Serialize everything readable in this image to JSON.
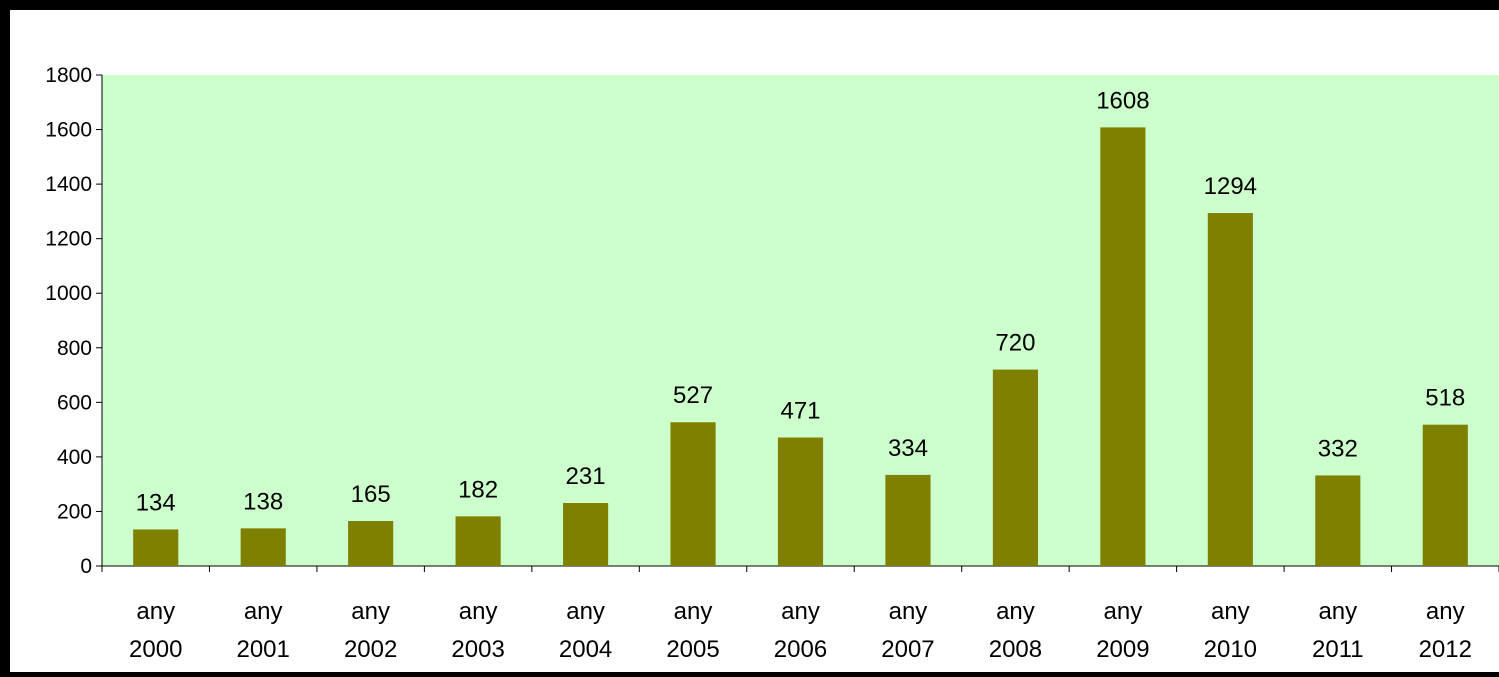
{
  "chart_data": {
    "type": "bar",
    "title": "",
    "xlabel": "",
    "ylabel": "",
    "categories": [
      [
        "any",
        "2000"
      ],
      [
        "any",
        "2001"
      ],
      [
        "any",
        "2002"
      ],
      [
        "any",
        "2003"
      ],
      [
        "any",
        "2004"
      ],
      [
        "any",
        "2005"
      ],
      [
        "any",
        "2006"
      ],
      [
        "any",
        "2007"
      ],
      [
        "any",
        "2008"
      ],
      [
        "any",
        "2009"
      ],
      [
        "any",
        "2010"
      ],
      [
        "any",
        "2011"
      ],
      [
        "any",
        "2012"
      ]
    ],
    "values": [
      134,
      138,
      165,
      182,
      231,
      527,
      471,
      334,
      720,
      1608,
      1294,
      332,
      518
    ],
    "data_labels": [
      "134",
      "138",
      "165",
      "182",
      "231",
      "527",
      "471",
      "334",
      "720",
      "1608",
      "1294",
      "332",
      "518"
    ],
    "ylim": [
      0,
      1800
    ],
    "yticks": [
      0,
      200,
      400,
      600,
      800,
      1000,
      1200,
      1400,
      1600,
      1800
    ],
    "grid": false,
    "legend": "none",
    "colors": {
      "bar": "#808000",
      "plot_background": "#ccffcc",
      "frame": "#000000",
      "outer_background": "#ffffff"
    }
  }
}
